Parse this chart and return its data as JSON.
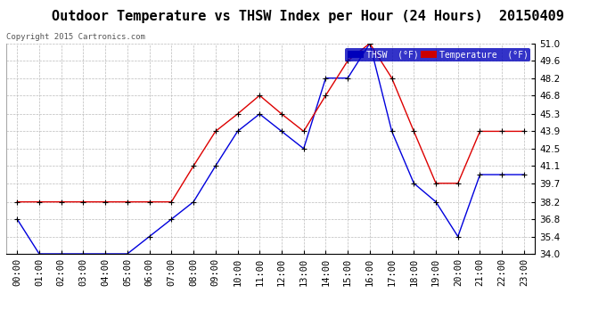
{
  "title": "Outdoor Temperature vs THSW Index per Hour (24 Hours)  20150409",
  "copyright": "Copyright 2015 Cartronics.com",
  "ylim": [
    34.0,
    51.0
  ],
  "yticks": [
    34.0,
    35.4,
    36.8,
    38.2,
    39.7,
    41.1,
    42.5,
    43.9,
    45.3,
    46.8,
    48.2,
    49.6,
    51.0
  ],
  "hours": [
    0,
    1,
    2,
    3,
    4,
    5,
    6,
    7,
    8,
    9,
    10,
    11,
    12,
    13,
    14,
    15,
    16,
    17,
    18,
    19,
    20,
    21,
    22,
    23
  ],
  "thsw": [
    36.8,
    34.0,
    34.0,
    34.0,
    34.0,
    34.0,
    35.4,
    36.8,
    38.2,
    41.1,
    43.9,
    45.3,
    43.9,
    42.5,
    48.2,
    48.2,
    51.0,
    43.9,
    39.7,
    38.2,
    35.4,
    40.4,
    40.4,
    40.4
  ],
  "temperature": [
    38.2,
    38.2,
    38.2,
    38.2,
    38.2,
    38.2,
    38.2,
    38.2,
    41.1,
    43.9,
    45.3,
    46.8,
    45.3,
    43.9,
    46.8,
    49.6,
    51.0,
    48.2,
    43.9,
    39.7,
    39.7,
    43.9,
    43.9,
    43.9
  ],
  "thsw_color": "#0000dd",
  "temp_color": "#dd0000",
  "background_color": "#ffffff",
  "plot_bg_color": "#ffffff",
  "grid_color": "#bbbbbb",
  "title_fontsize": 11,
  "tick_fontsize": 7.5,
  "legend_thsw_bg": "#0000bb",
  "legend_temp_bg": "#cc0000",
  "copyright_color": "#555555"
}
